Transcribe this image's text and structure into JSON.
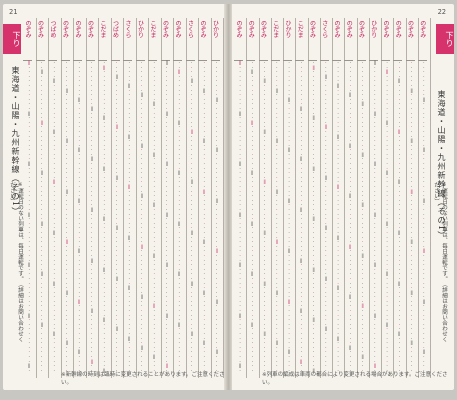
{
  "left_page": {
    "page_number": "21",
    "tab_label": "下り",
    "title": "東海道・山陽・九州新幹線（その1）",
    "note": "※運転日のない列車は、毎日運転です。（詳細はお問い合わせください）",
    "footer": "※新幹線の時刻は臨時に変更されることがあります。ご注意ください。"
  },
  "right_page": {
    "page_number": "22",
    "tab_label": "下り",
    "title": "東海道・山陽・九州新幹線（その1）",
    "note": "※運転日のない列車は、毎日運転です。（詳細はお問い合わせください）",
    "footer": "※列車の編成は車両の都合により変更される場合があります。ご注意ください。"
  },
  "columns_left": [
    "のぞみ",
    "のぞみ",
    "つばめ",
    "のぞみ",
    "のぞみ",
    "のぞみ",
    "こだま",
    "つばめ",
    "さくら",
    "ひかり",
    "こだま",
    "のぞみ",
    "のぞみ",
    "さくら",
    "のぞみ",
    "ひかり"
  ],
  "columns_right": [
    "のぞみ",
    "のぞみ",
    "のぞみ",
    "こだま",
    "ひかり",
    "こだま",
    "のぞみ",
    "さくら",
    "のぞみ",
    "のぞみ",
    "のぞみ",
    "ひかり",
    "のぞみ",
    "のぞみ",
    "のぞみ",
    "のぞみ"
  ]
}
